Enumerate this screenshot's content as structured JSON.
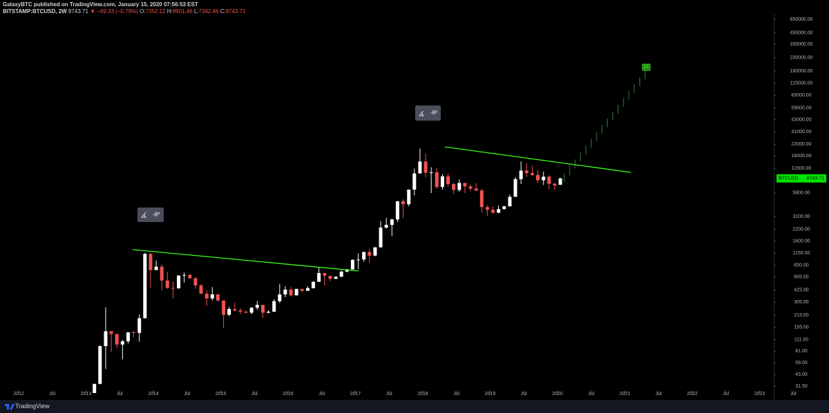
{
  "header": {
    "publisher": "GalaxyBTC published on TradingView.com, January 15, 2020 07:56:53 EST",
    "symbol": "BITSTAMP:BTCUSD, 2W",
    "last": "8743.71",
    "change": "▼ −69.33 (−0.79%)",
    "ohlc": [
      {
        "label": "O:",
        "value": "7352.12"
      },
      {
        "label": "H:",
        "value": "8901.46"
      },
      {
        "label": "L:",
        "value": "7342.46"
      },
      {
        "label": "C:",
        "value": "8743.71"
      }
    ]
  },
  "chart_data": {
    "type": "candlestick",
    "series_name": "BTCUSD",
    "log_scale": true,
    "up_color": "#ffffff",
    "down_color": "#ef5350",
    "last_price_color": "#00e600",
    "x": [
      2013.125,
      2013.208,
      2013.292,
      2013.375,
      2013.458,
      2013.542,
      2013.625,
      2013.708,
      2013.792,
      2013.875,
      2013.958,
      2014.042,
      2014.125,
      2014.208,
      2014.292,
      2014.375,
      2014.458,
      2014.542,
      2014.625,
      2014.708,
      2014.792,
      2014.875,
      2014.958,
      2015.042,
      2015.125,
      2015.208,
      2015.292,
      2015.375,
      2015.458,
      2015.542,
      2015.625,
      2015.708,
      2015.792,
      2015.875,
      2015.958,
      2016.042,
      2016.125,
      2016.208,
      2016.292,
      2016.375,
      2016.458,
      2016.542,
      2016.625,
      2016.708,
      2016.792,
      2016.875,
      2016.958,
      2017.042,
      2017.125,
      2017.208,
      2017.292,
      2017.375,
      2017.458,
      2017.542,
      2017.625,
      2017.708,
      2017.792,
      2017.875,
      2017.958,
      2018.042,
      2018.125,
      2018.208,
      2018.292,
      2018.375,
      2018.458,
      2018.542,
      2018.625,
      2018.708,
      2018.792,
      2018.875,
      2018.958,
      2019.042,
      2019.125,
      2019.208,
      2019.292,
      2019.375,
      2019.458,
      2019.542,
      2019.625,
      2019.708,
      2019.792,
      2019.875,
      2019.958,
      2020.042
    ],
    "open": [
      20.4,
      33.4,
      93,
      139,
      129,
      97,
      106,
      135,
      133,
      198,
      1130,
      730,
      800,
      550,
      450,
      445,
      630,
      640,
      585,
      480,
      385,
      338,
      378,
      320,
      217,
      254,
      244,
      236,
      230,
      263,
      284,
      230,
      236,
      314,
      377,
      430,
      368,
      437,
      416,
      448,
      531,
      673,
      624,
      575,
      609,
      700,
      742,
      963,
      970,
      1190,
      1080,
      1350,
      2300,
      2480,
      2875,
      4700,
      4340,
      6450,
      10000,
      13800,
      10200,
      10300,
      6930,
      9240,
      7500,
      6390,
      7730,
      7030,
      6630,
      6300,
      4020,
      3740,
      3450,
      3800,
      4100,
      5300,
      8570,
      10800,
      10100,
      9600,
      8300,
      9150,
      7550,
      7352.12
    ],
    "high": [
      33.5,
      95,
      266,
      140,
      130,
      110,
      135,
      140,
      220,
      1163,
      1160,
      950,
      850,
      700,
      535,
      630,
      680,
      660,
      600,
      500,
      420,
      460,
      380,
      320,
      270,
      300,
      260,
      245,
      267,
      315,
      285,
      245,
      330,
      500,
      470,
      460,
      440,
      440,
      470,
      540,
      780,
      680,
      625,
      615,
      720,
      755,
      975,
      1150,
      1200,
      1300,
      1360,
      2760,
      3000,
      2920,
      4740,
      4980,
      6470,
      11400,
      19666,
      17200,
      11800,
      11700,
      9750,
      9990,
      7760,
      8500,
      7750,
      7400,
      7680,
      6600,
      4230,
      4100,
      4200,
      4150,
      5650,
      9070,
      13880,
      13200,
      12300,
      10900,
      10500,
      9500,
      7750,
      8901.46
    ],
    "low": [
      19.5,
      33,
      50,
      80,
      88,
      65,
      100,
      118,
      105,
      197,
      450,
      730,
      420,
      440,
      340,
      440,
      520,
      570,
      440,
      380,
      275,
      320,
      310,
      152,
      210,
      240,
      220,
      225,
      220,
      250,
      200,
      225,
      235,
      300,
      350,
      355,
      365,
      400,
      415,
      440,
      530,
      480,
      540,
      575,
      605,
      685,
      740,
      750,
      910,
      890,
      1060,
      1340,
      2250,
      1830,
      2670,
      2970,
      4110,
      5500,
      10000,
      9000,
      5870,
      6600,
      6450,
      7030,
      5750,
      6070,
      5880,
      6150,
      6200,
      3470,
      3150,
      3350,
      3390,
      3750,
      4070,
      5300,
      7500,
      9080,
      9350,
      7700,
      7300,
      6520,
      6420,
      7342.46
    ],
    "close": [
      33.4,
      93,
      139,
      129,
      97,
      106,
      135,
      133,
      198,
      1130,
      730,
      800,
      550,
      450,
      445,
      630,
      640,
      585,
      480,
      385,
      338,
      378,
      320,
      217,
      254,
      244,
      236,
      230,
      263,
      284,
      230,
      236,
      314,
      377,
      430,
      368,
      437,
      416,
      448,
      531,
      673,
      624,
      575,
      609,
      700,
      742,
      963,
      970,
      1190,
      1080,
      1350,
      2300,
      2480,
      2875,
      4700,
      4340,
      6450,
      10000,
      13800,
      10200,
      10300,
      6930,
      9240,
      7500,
      6390,
      7730,
      7030,
      6630,
      6300,
      4020,
      3740,
      3450,
      3800,
      4100,
      5300,
      8570,
      10800,
      10100,
      9600,
      8300,
      9150,
      7550,
      7200,
      8743.71
    ],
    "projection": {
      "color": "#1f5c1f",
      "x": [
        2020.1,
        2020.18,
        2020.26,
        2020.34,
        2020.42,
        2020.5,
        2020.58,
        2020.66,
        2020.74,
        2020.82,
        2020.9,
        2020.98,
        2021.06,
        2021.14,
        2021.22,
        2021.3
      ],
      "high": [
        10080,
        12130,
        14600,
        17580,
        21170,
        25480,
        30670,
        36920,
        44430,
        53480,
        64380,
        77490,
        93270,
        112300,
        135200,
        162700
      ],
      "low": [
        7920,
        9530,
        11480,
        13820,
        16630,
        20020,
        24090,
        29000,
        34910,
        42020,
        50580,
        60890,
        73290,
        88220,
        106200,
        127900
      ]
    },
    "trend_color": "#3cff1a",
    "trend_lines": [
      {
        "x": [
          2013.692,
          2017.046
        ],
        "values": [
          1270,
          712
        ]
      },
      {
        "x": [
          2018.326,
          2021.087
        ],
        "values": [
          20540,
          10290
        ]
      }
    ],
    "annotations": [
      {
        "text": "-6º"
      },
      {
        "text": "-6º"
      }
    ],
    "xlim": [
      2011.723,
      2023.518
    ],
    "xticks": [
      2012,
      {
        "value": 2012.5,
        "label": "Jul"
      },
      2013,
      {
        "value": 2013.5,
        "label": "Jul"
      },
      2014,
      {
        "value": 2014.5,
        "label": "Jul"
      },
      2015,
      {
        "value": 2015.5,
        "label": "Jul"
      },
      2016,
      {
        "value": 2016.5,
        "label": "Jul"
      },
      2017,
      {
        "value": 2017.5,
        "label": "Jul"
      },
      2018,
      {
        "value": 2018.5,
        "label": "Jul"
      },
      2019,
      {
        "value": 2019.5,
        "label": "Jul"
      },
      2020,
      {
        "value": 2020.5,
        "label": "Jul"
      },
      2021,
      {
        "value": 2021.5,
        "label": "Jul"
      },
      2022,
      {
        "value": 2022.5,
        "label": "Jul"
      },
      2023,
      {
        "value": 2023.5,
        "label": "Jul"
      }
    ],
    "ylim": [
      26.1,
      755000
    ],
    "yticks": [
      {
        "value": 650000,
        "label": "650000.00"
      },
      {
        "value": 450000,
        "label": "450000.00"
      },
      {
        "value": 330000,
        "label": "330000.00"
      },
      {
        "value": 230000,
        "label": "230000.00"
      },
      {
        "value": 160000,
        "label": "160000.00"
      },
      {
        "value": 115000,
        "label": "115000.00"
      },
      {
        "value": 83000,
        "label": "83000.00"
      },
      {
        "value": 59000,
        "label": "59000.00"
      },
      {
        "value": 43000,
        "label": "43000.00"
      },
      {
        "value": 31000,
        "label": "31000.00"
      },
      {
        "value": 22000,
        "label": "22000.00"
      },
      {
        "value": 16000,
        "label": "16000.00"
      },
      {
        "value": 11500,
        "label": "11500.00"
      },
      {
        "value": 5900,
        "label": "5900.00"
      },
      {
        "value": 3100,
        "label": "3100.00"
      },
      {
        "value": 2200,
        "label": "2200.00"
      },
      {
        "value": 1600,
        "label": "1600.00"
      },
      {
        "value": 1150,
        "label": "1150.00"
      },
      {
        "value": 830,
        "label": "830.00"
      },
      {
        "value": 605,
        "label": "605.00"
      },
      {
        "value": 425,
        "label": "425.00"
      },
      {
        "value": 305,
        "label": "305.00"
      },
      {
        "value": 215,
        "label": "215.00"
      },
      {
        "value": 155,
        "label": "155.00"
      },
      {
        "value": 111,
        "label": "111.00"
      },
      {
        "value": 81,
        "label": "81.00"
      },
      {
        "value": 59,
        "label": "59.00"
      },
      {
        "value": 43,
        "label": "43.00"
      },
      {
        "value": 31.5,
        "label": "31.50"
      }
    ]
  },
  "footer": {
    "brand": "TradingView"
  }
}
